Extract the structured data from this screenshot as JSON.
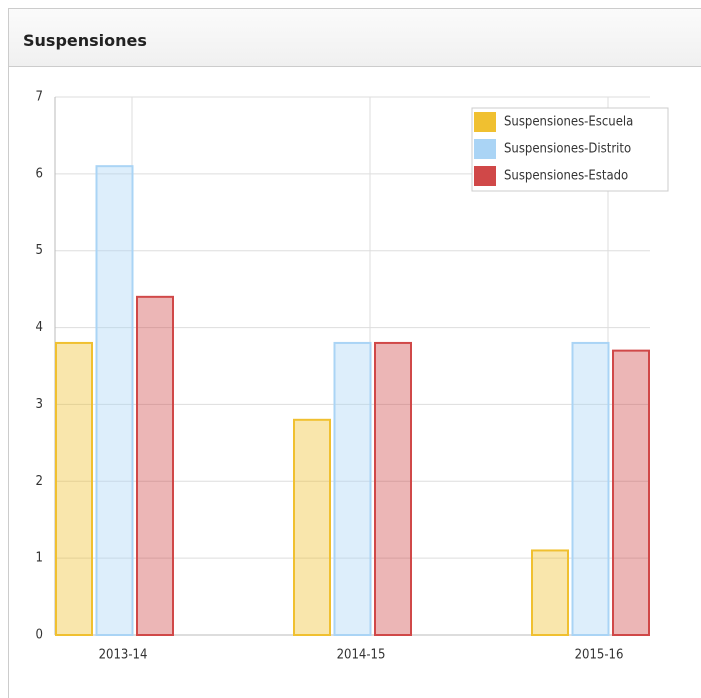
{
  "chart_data": {
    "type": "bar",
    "title": "Suspensiones",
    "categories": [
      "2013-14",
      "2014-15",
      "2015-16"
    ],
    "series": [
      {
        "name": "Suspensiones-Escuela",
        "color": "#f0c030",
        "values": [
          3.8,
          2.8,
          1.1
        ]
      },
      {
        "name": "Suspensiones-Distrito",
        "color": "#aad4f5",
        "values": [
          6.1,
          3.8,
          3.8
        ]
      },
      {
        "name": "Suspensiones-Estado",
        "color": "#d04848",
        "values": [
          4.4,
          3.8,
          3.7
        ]
      }
    ],
    "ylim": [
      0,
      7
    ],
    "yticks": [
      0,
      1,
      2,
      3,
      4,
      5,
      6,
      7
    ],
    "grid": true,
    "legend": "top-right"
  }
}
